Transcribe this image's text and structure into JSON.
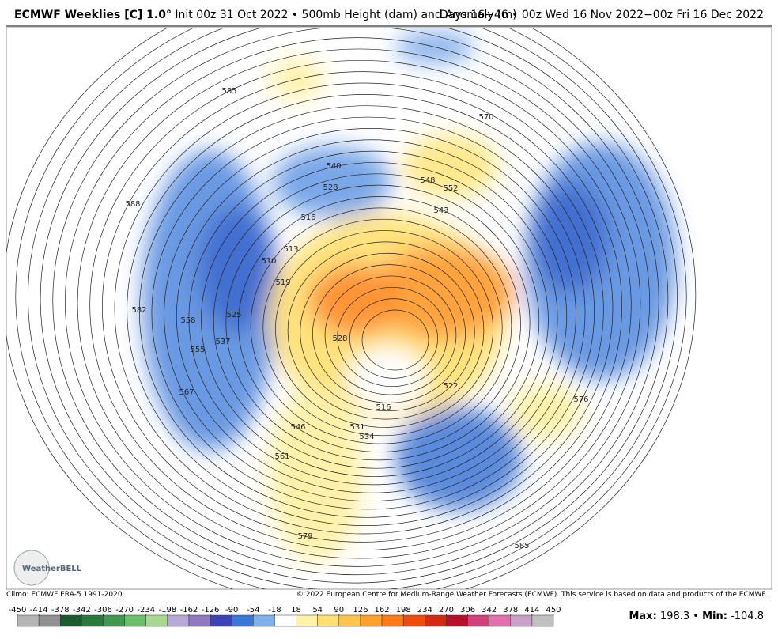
{
  "header": {
    "title_bold": "ECMWF Weeklies [C] 1.0°",
    "title_rest": "Init 00z 31 Oct 2022 • 500mb Height (dam) and Anomaly (m)",
    "title_right": "Days 16−46 • 00z Wed 16 Nov 2022−00z Fri 16 Dec 2022"
  },
  "map": {
    "logo": "WeatherBELL",
    "contour_labels": [
      "585",
      "540",
      "528",
      "570",
      "548",
      "552",
      "543",
      "516",
      "510",
      "513",
      "519",
      "588",
      "558",
      "555",
      "525",
      "537",
      "567",
      "582",
      "528",
      "522",
      "516",
      "531",
      "534",
      "546",
      "561",
      "579",
      "576",
      "585"
    ]
  },
  "footer": {
    "climo": "Climo: ECMWF ERA-5 1991-2020",
    "copyright": "© 2022 European Centre for Medium-Range Weather Forecasts (ECMWF). This service is based on data and products of the ECMWF."
  },
  "colorbar": {
    "ticks": [
      -450,
      -414,
      -378,
      -342,
      -306,
      -270,
      -234,
      -198,
      -162,
      -126,
      -90,
      -54,
      -18,
      18,
      54,
      90,
      126,
      162,
      198,
      234,
      270,
      306,
      342,
      378,
      414,
      450
    ],
    "colors": [
      "#b5b5b5",
      "#909090",
      "#1a5c2e",
      "#2a7a3e",
      "#3f9a50",
      "#6cbf6a",
      "#a6d890",
      "#b8a8d8",
      "#8f78c4",
      "#3c44b8",
      "#3a78d8",
      "#7eb0ec",
      "#ffffff",
      "#fff3a8",
      "#ffe070",
      "#ffc44a",
      "#ffa02c",
      "#ff7a18",
      "#f04a0c",
      "#d42a10",
      "#b8102a",
      "#d0407a",
      "#e070b0",
      "#c8a0c8",
      "#c0c0c0"
    ]
  },
  "stats": {
    "max_label": "Max:",
    "max": "198.3",
    "sep": "•",
    "min_label": "Min:",
    "min": "-104.8"
  }
}
